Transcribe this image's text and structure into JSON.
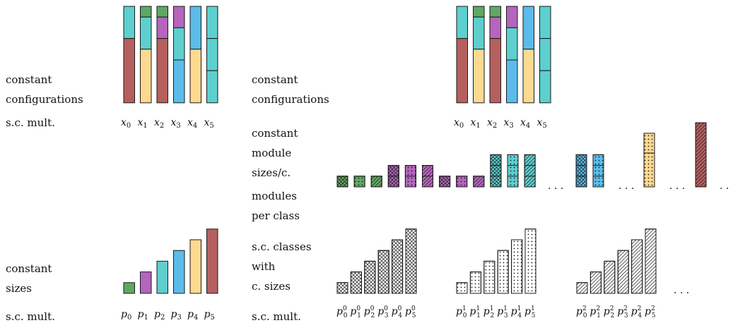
{
  "colors": {
    "brown": "#b5605f",
    "yellow": "#fdd991",
    "purple": "#b565be",
    "blue": "#5bbcea",
    "teal": "#5ecfcf",
    "green": "#5fa862",
    "stroke": "#1a1a1a",
    "white": "#ffffff"
  },
  "labels": {
    "left_top": [
      "constant",
      "configurations",
      "s.c. mult."
    ],
    "left_bottom": [
      "constant",
      "sizes",
      "s.c. mult."
    ],
    "right_top": [
      "constant",
      "configurations"
    ],
    "right_middle": [
      "constant",
      "module",
      "sizes/c.",
      "modules",
      "per class"
    ],
    "right_bottom": [
      "s.c. classes",
      "with",
      "c. sizes",
      "s.c. mult."
    ]
  },
  "config_axis": {
    "base": "x",
    "subs": [
      "0",
      "1",
      "2",
      "3",
      "4",
      "5"
    ]
  },
  "size_axis": {
    "base": "p",
    "subs": [
      "0",
      "1",
      "2",
      "3",
      "4",
      "5"
    ]
  },
  "class_axis": {
    "base": "p",
    "subs": [
      "0",
      "1",
      "2",
      "3",
      "4",
      "5"
    ],
    "sups": [
      "0",
      "1",
      "2"
    ]
  },
  "ellipsis": ". . .",
  "configurations": [
    {
      "config": "x0",
      "segments": [
        {
          "color": "teal",
          "units": 3
        },
        {
          "color": "brown",
          "units": 6
        }
      ]
    },
    {
      "config": "x1",
      "segments": [
        {
          "color": "green",
          "units": 1
        },
        {
          "color": "teal",
          "units": 3
        },
        {
          "color": "yellow",
          "units": 5
        }
      ]
    },
    {
      "config": "x2",
      "segments": [
        {
          "color": "green",
          "units": 1
        },
        {
          "color": "purple",
          "units": 2
        },
        {
          "color": "brown",
          "units": 6
        }
      ]
    },
    {
      "config": "x3",
      "segments": [
        {
          "color": "purple",
          "units": 2
        },
        {
          "color": "teal",
          "units": 3
        },
        {
          "color": "blue",
          "units": 4
        }
      ]
    },
    {
      "config": "x4",
      "segments": [
        {
          "color": "blue",
          "units": 4
        },
        {
          "color": "yellow",
          "units": 5
        }
      ]
    },
    {
      "config": "x5",
      "segments": [
        {
          "color": "teal",
          "units": 3
        },
        {
          "color": "teal",
          "units": 3
        },
        {
          "color": "teal",
          "units": 3
        }
      ]
    }
  ],
  "sizes": [
    {
      "item": "p0",
      "color": "green",
      "units": 1
    },
    {
      "item": "p1",
      "color": "purple",
      "units": 2
    },
    {
      "item": "p2",
      "color": "teal",
      "units": 3
    },
    {
      "item": "p3",
      "color": "blue",
      "units": 4
    },
    {
      "item": "p4",
      "color": "yellow",
      "units": 5
    },
    {
      "item": "p5",
      "color": "brown",
      "units": 6
    }
  ],
  "modules": {
    "group1": [
      {
        "color": "green",
        "pattern": "cross",
        "parts": 1
      },
      {
        "color": "green",
        "pattern": "dots",
        "parts": 1
      },
      {
        "color": "green",
        "pattern": "diag",
        "parts": 1
      },
      {
        "color": "purple",
        "pattern": "cross",
        "parts": 2
      },
      {
        "color": "purple",
        "pattern": "dots",
        "parts": 2
      },
      {
        "color": "purple",
        "pattern": "diag",
        "parts": 2
      },
      {
        "color": "purple",
        "pattern": "cross",
        "parts": 1
      },
      {
        "color": "purple",
        "pattern": "dots",
        "parts": 1
      },
      {
        "color": "purple",
        "pattern": "diag",
        "parts": 1
      },
      {
        "color": "teal",
        "pattern": "cross",
        "parts": 3
      },
      {
        "color": "teal",
        "pattern": "dots",
        "parts": 3
      },
      {
        "color": "teal",
        "pattern": "diag",
        "parts": 3
      }
    ],
    "group2": [
      {
        "color": "blue",
        "pattern": "cross",
        "parts": 3
      },
      {
        "color": "blue",
        "pattern": "dots",
        "parts": 3
      }
    ],
    "group3": [
      {
        "color": "yellow",
        "pattern": "dots",
        "parts": 2
      }
    ],
    "group4": [
      {
        "color": "brown",
        "pattern": "diag",
        "parts": 1
      }
    ]
  },
  "classes": [
    {
      "sup": "0",
      "pattern": "cross"
    },
    {
      "sup": "1",
      "pattern": "dots"
    },
    {
      "sup": "2",
      "pattern": "diag"
    }
  ]
}
